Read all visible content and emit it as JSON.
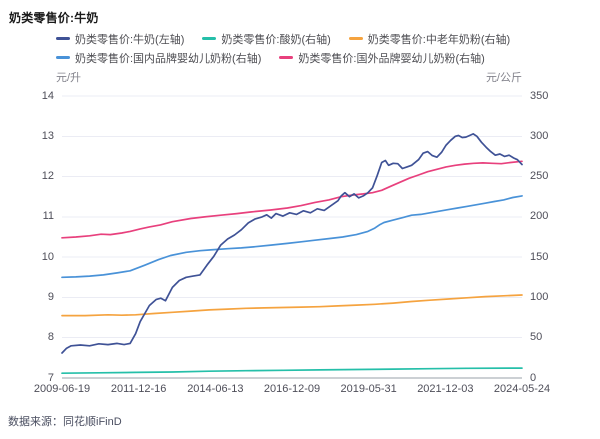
{
  "window": {
    "title": "奶类零售价:牛奶",
    "source": "数据来源：同花顺iFinD"
  },
  "colors": {
    "grid": "#ebecf4",
    "axis_line": "#9aa0aa",
    "tick_text": "#4e4e59",
    "milk": "#3f5296",
    "yogurt": "#25bfa9",
    "senior_powder": "#f5a33f",
    "domestic_infant": "#4992d8",
    "foreign_infant": "#e8407d"
  },
  "chart_data": {
    "type": "line",
    "title": "奶类零售价:牛奶",
    "grid": true,
    "legend_position": "top-left",
    "axes": {
      "left": {
        "unit": "元/升",
        "min": 7,
        "max": 14,
        "ticks": [
          14,
          13,
          12,
          11,
          10,
          9,
          8,
          7
        ]
      },
      "right": {
        "unit": "元/公斤",
        "min": 0,
        "max": 350,
        "ticks": [
          350,
          300,
          250,
          200,
          150,
          100,
          50,
          0
        ]
      },
      "x_ticks": [
        "2009-06-19",
        "2011-12-16",
        "2014-06-13",
        "2016-12-09",
        "2019-05-31",
        "2021-12-03",
        "2024-05-24"
      ]
    },
    "series": [
      {
        "name": "奶类零售价:牛奶(左轴)",
        "axis": "left",
        "color": "#3f5296",
        "points": [
          [
            0,
            7.62
          ],
          [
            0.01,
            7.74
          ],
          [
            0.02,
            7.8
          ],
          [
            0.04,
            7.82
          ],
          [
            0.06,
            7.8
          ],
          [
            0.08,
            7.85
          ],
          [
            0.1,
            7.83
          ],
          [
            0.12,
            7.86
          ],
          [
            0.135,
            7.83
          ],
          [
            0.148,
            7.86
          ],
          [
            0.16,
            8.1
          ],
          [
            0.17,
            8.4
          ],
          [
            0.19,
            8.8
          ],
          [
            0.205,
            8.95
          ],
          [
            0.215,
            8.98
          ],
          [
            0.225,
            8.92
          ],
          [
            0.24,
            9.25
          ],
          [
            0.255,
            9.42
          ],
          [
            0.27,
            9.5
          ],
          [
            0.285,
            9.53
          ],
          [
            0.3,
            9.56
          ],
          [
            0.315,
            9.8
          ],
          [
            0.33,
            10.02
          ],
          [
            0.345,
            10.3
          ],
          [
            0.36,
            10.45
          ],
          [
            0.375,
            10.55
          ],
          [
            0.39,
            10.68
          ],
          [
            0.405,
            10.85
          ],
          [
            0.42,
            10.95
          ],
          [
            0.435,
            11.0
          ],
          [
            0.445,
            11.05
          ],
          [
            0.455,
            10.97
          ],
          [
            0.465,
            11.08
          ],
          [
            0.48,
            11.02
          ],
          [
            0.495,
            11.1
          ],
          [
            0.51,
            11.06
          ],
          [
            0.525,
            11.15
          ],
          [
            0.54,
            11.1
          ],
          [
            0.555,
            11.2
          ],
          [
            0.57,
            11.16
          ],
          [
            0.585,
            11.28
          ],
          [
            0.6,
            11.4
          ],
          [
            0.607,
            11.52
          ],
          [
            0.615,
            11.6
          ],
          [
            0.625,
            11.5
          ],
          [
            0.635,
            11.57
          ],
          [
            0.645,
            11.47
          ],
          [
            0.655,
            11.52
          ],
          [
            0.665,
            11.6
          ],
          [
            0.675,
            11.72
          ],
          [
            0.685,
            12.02
          ],
          [
            0.695,
            12.35
          ],
          [
            0.703,
            12.4
          ],
          [
            0.71,
            12.28
          ],
          [
            0.72,
            12.33
          ],
          [
            0.73,
            12.32
          ],
          [
            0.74,
            12.2
          ],
          [
            0.75,
            12.24
          ],
          [
            0.76,
            12.28
          ],
          [
            0.775,
            12.42
          ],
          [
            0.785,
            12.58
          ],
          [
            0.795,
            12.62
          ],
          [
            0.805,
            12.52
          ],
          [
            0.815,
            12.48
          ],
          [
            0.825,
            12.6
          ],
          [
            0.835,
            12.78
          ],
          [
            0.845,
            12.9
          ],
          [
            0.855,
            13.0
          ],
          [
            0.862,
            13.02
          ],
          [
            0.87,
            12.97
          ],
          [
            0.878,
            12.98
          ],
          [
            0.886,
            13.02
          ],
          [
            0.894,
            13.06
          ],
          [
            0.902,
            13.0
          ],
          [
            0.912,
            12.85
          ],
          [
            0.922,
            12.73
          ],
          [
            0.932,
            12.62
          ],
          [
            0.942,
            12.53
          ],
          [
            0.952,
            12.56
          ],
          [
            0.962,
            12.5
          ],
          [
            0.972,
            12.53
          ],
          [
            0.982,
            12.46
          ],
          [
            0.99,
            12.42
          ],
          [
            1,
            12.3
          ]
        ]
      },
      {
        "name": "奶类零售价:酸奶(右轴)",
        "axis": "right",
        "color": "#25bfa9",
        "points": [
          [
            0,
            6
          ],
          [
            0.08,
            6.5
          ],
          [
            0.16,
            7
          ],
          [
            0.24,
            7.5
          ],
          [
            0.32,
            8.5
          ],
          [
            0.4,
            9
          ],
          [
            0.48,
            9.5
          ],
          [
            0.56,
            10
          ],
          [
            0.64,
            10.5
          ],
          [
            0.72,
            11
          ],
          [
            0.8,
            11.5
          ],
          [
            0.88,
            12
          ],
          [
            1,
            12.3
          ]
        ]
      },
      {
        "name": "奶类零售价:中老年奶粉(右轴)",
        "axis": "right",
        "color": "#f5a33f",
        "points": [
          [
            0,
            77.5
          ],
          [
            0.05,
            77.5
          ],
          [
            0.1,
            78.5
          ],
          [
            0.13,
            78
          ],
          [
            0.16,
            78.5
          ],
          [
            0.2,
            80
          ],
          [
            0.24,
            81.5
          ],
          [
            0.28,
            83
          ],
          [
            0.32,
            84.5
          ],
          [
            0.36,
            85.5
          ],
          [
            0.4,
            86.5
          ],
          [
            0.44,
            87
          ],
          [
            0.48,
            87.5
          ],
          [
            0.52,
            88
          ],
          [
            0.56,
            88.5
          ],
          [
            0.6,
            89.5
          ],
          [
            0.64,
            90.5
          ],
          [
            0.68,
            91.5
          ],
          [
            0.72,
            93
          ],
          [
            0.76,
            95
          ],
          [
            0.8,
            96.5
          ],
          [
            0.84,
            98
          ],
          [
            0.88,
            99.5
          ],
          [
            0.92,
            101
          ],
          [
            0.96,
            102
          ],
          [
            1,
            103
          ]
        ]
      },
      {
        "name": "奶类零售价:国内品牌婴幼儿奶粉(右轴)",
        "axis": "right",
        "color": "#4992d8",
        "points": [
          [
            0,
            125
          ],
          [
            0.03,
            125.5
          ],
          [
            0.06,
            126.5
          ],
          [
            0.09,
            128
          ],
          [
            0.12,
            130.5
          ],
          [
            0.148,
            133
          ],
          [
            0.18,
            140
          ],
          [
            0.21,
            147
          ],
          [
            0.236,
            152
          ],
          [
            0.27,
            156
          ],
          [
            0.3,
            158
          ],
          [
            0.323,
            159
          ],
          [
            0.36,
            160.5
          ],
          [
            0.39,
            161.5
          ],
          [
            0.42,
            163
          ],
          [
            0.454,
            165
          ],
          [
            0.49,
            167
          ],
          [
            0.52,
            169
          ],
          [
            0.55,
            171
          ],
          [
            0.58,
            173
          ],
          [
            0.61,
            175
          ],
          [
            0.64,
            178
          ],
          [
            0.665,
            182
          ],
          [
            0.68,
            186
          ],
          [
            0.69,
            190
          ],
          [
            0.7,
            193
          ],
          [
            0.72,
            196
          ],
          [
            0.74,
            199
          ],
          [
            0.76,
            202
          ],
          [
            0.78,
            203
          ],
          [
            0.8,
            205
          ],
          [
            0.82,
            207
          ],
          [
            0.84,
            209
          ],
          [
            0.86,
            211
          ],
          [
            0.88,
            213
          ],
          [
            0.9,
            215
          ],
          [
            0.92,
            217
          ],
          [
            0.94,
            219
          ],
          [
            0.96,
            221
          ],
          [
            0.98,
            224
          ],
          [
            1,
            226
          ]
        ]
      },
      {
        "name": "奶类零售价:国外品牌婴幼儿奶粉(右轴)",
        "axis": "right",
        "color": "#e8407d",
        "points": [
          [
            0,
            174
          ],
          [
            0.03,
            175
          ],
          [
            0.06,
            176.5
          ],
          [
            0.085,
            178.5
          ],
          [
            0.105,
            178
          ],
          [
            0.13,
            180
          ],
          [
            0.148,
            182
          ],
          [
            0.17,
            185
          ],
          [
            0.19,
            187.5
          ],
          [
            0.214,
            190
          ],
          [
            0.24,
            194
          ],
          [
            0.28,
            198
          ],
          [
            0.31,
            200
          ],
          [
            0.345,
            202
          ],
          [
            0.38,
            204
          ],
          [
            0.41,
            206
          ],
          [
            0.454,
            208.5
          ],
          [
            0.49,
            211
          ],
          [
            0.52,
            214
          ],
          [
            0.55,
            218
          ],
          [
            0.58,
            221
          ],
          [
            0.607,
            225
          ],
          [
            0.63,
            227
          ],
          [
            0.655,
            228.5
          ],
          [
            0.675,
            230
          ],
          [
            0.695,
            233
          ],
          [
            0.715,
            238
          ],
          [
            0.735,
            243
          ],
          [
            0.755,
            248
          ],
          [
            0.775,
            252
          ],
          [
            0.795,
            256
          ],
          [
            0.815,
            259
          ],
          [
            0.835,
            262
          ],
          [
            0.855,
            264
          ],
          [
            0.875,
            265.5
          ],
          [
            0.895,
            266.5
          ],
          [
            0.915,
            267
          ],
          [
            0.935,
            266.5
          ],
          [
            0.955,
            266
          ],
          [
            0.975,
            267.5
          ],
          [
            1,
            269
          ]
        ]
      }
    ]
  }
}
